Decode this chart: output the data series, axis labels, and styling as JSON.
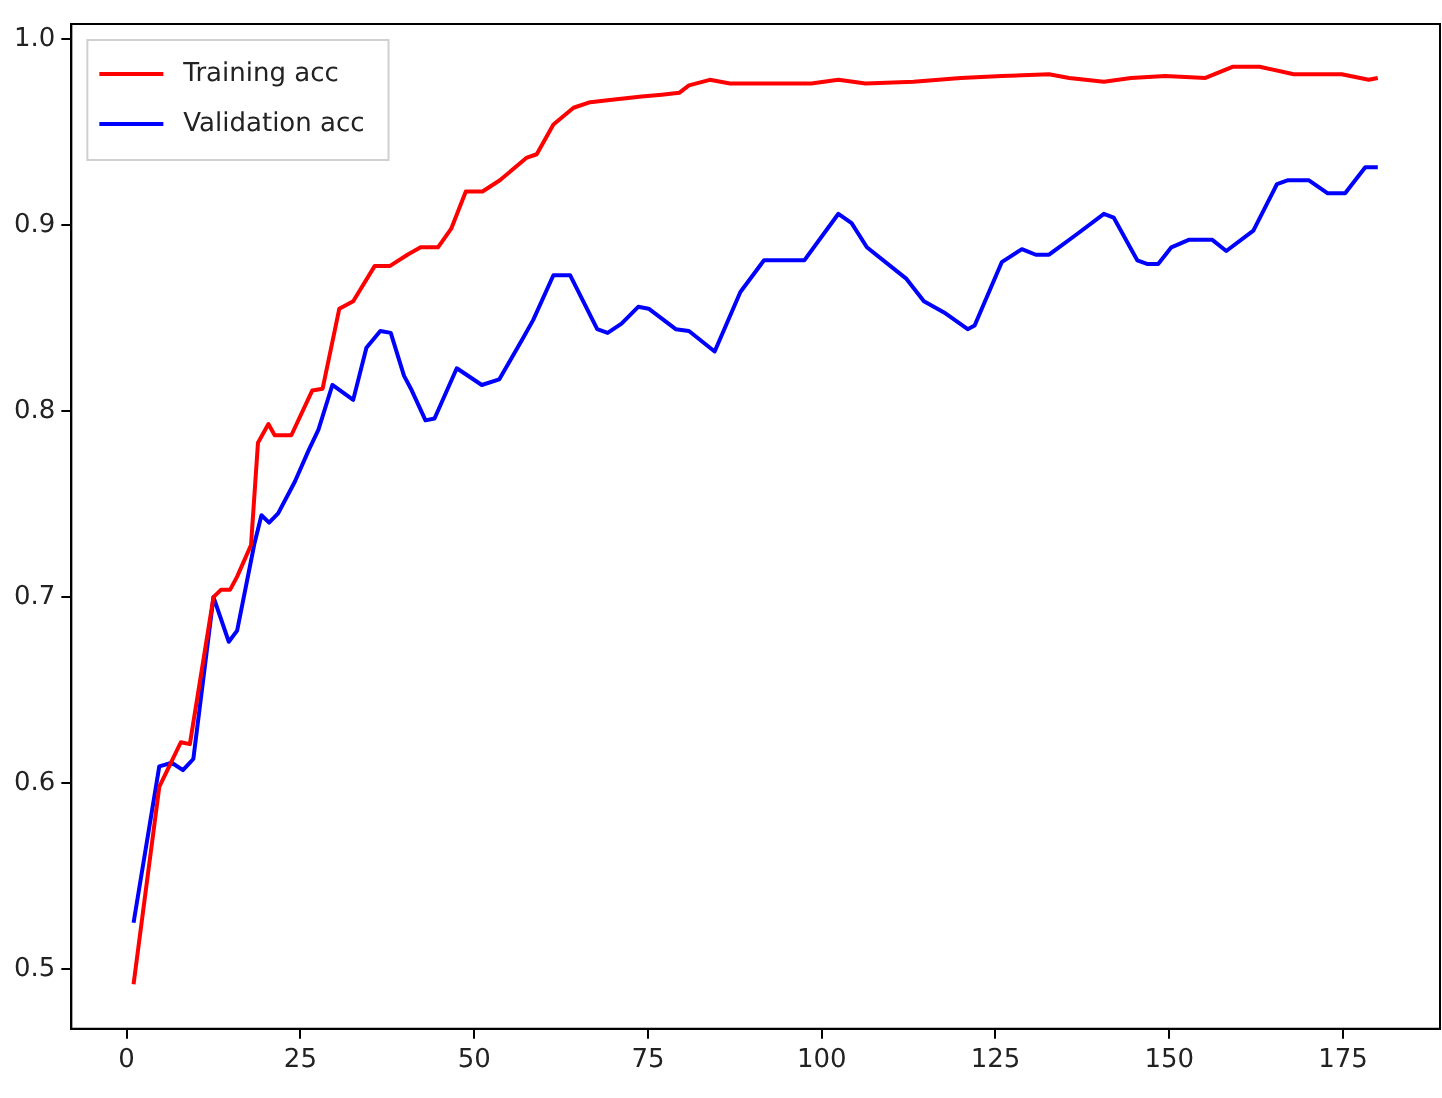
{
  "chart_data": {
    "type": "line",
    "legend": "top left",
    "grid": false,
    "marker": "none",
    "line_style": "solid",
    "xlim": [
      -7.95,
      188.95
    ],
    "xticks": [
      0,
      25,
      50,
      75,
      100,
      125,
      150,
      175
    ],
    "ylim": [
      0.468,
      1.008
    ],
    "yticks": [
      0.5,
      0.6,
      0.7,
      0.8,
      0.9,
      {
        "value": 1,
        "label": "1.0"
      }
    ],
    "series": [
      {
        "name": "Training acc",
        "color": "#ff0000",
        "x": [
          1,
          4.7,
          7.8,
          9.1,
          12.5,
          13.6,
          14.9,
          15.9,
          17.9,
          18.9,
          20.4,
          21.3,
          23.7,
          26.7,
          28.2,
          30.6,
          32.6,
          35.7,
          37.9,
          40.4,
          42.3,
          44.8,
          46.7,
          48.8,
          51.2,
          53.7,
          57.5,
          59,
          61.4,
          64.3,
          66.7,
          69.2,
          74.1,
          77,
          79.5,
          80.9,
          83.9,
          86.8,
          98.5,
          102.4,
          106.3,
          113.2,
          120,
          125.9,
          132.7,
          135.6,
          140.6,
          144.5,
          149.4,
          155.2,
          159.1,
          163,
          167.9,
          174.8,
          178.7,
          180
        ],
        "values": [
          0.492,
          0.598,
          0.622,
          0.621,
          0.7,
          0.704,
          0.704,
          0.711,
          0.728,
          0.783,
          0.793,
          0.787,
          0.787,
          0.811,
          0.812,
          0.855,
          0.859,
          0.878,
          0.878,
          0.884,
          0.888,
          0.888,
          0.898,
          0.918,
          0.918,
          0.924,
          0.936,
          0.938,
          0.954,
          0.963,
          0.966,
          0.967,
          0.969,
          0.97,
          0.971,
          0.975,
          0.978,
          0.976,
          0.976,
          0.978,
          0.976,
          0.977,
          0.979,
          0.98,
          0.981,
          0.979,
          0.977,
          0.979,
          0.98,
          0.979,
          0.985,
          0.985,
          0.981,
          0.981,
          0.978,
          0.979
        ]
      },
      {
        "name": "Validation acc",
        "color": "#0000ff",
        "x": [
          1,
          4.7,
          6.5,
          8.1,
          9.6,
          12.5,
          14.7,
          15.9,
          18.4,
          19.4,
          20.5,
          21.8,
          24.2,
          26.2,
          27.6,
          29.6,
          32.6,
          34.5,
          36.5,
          38,
          39.9,
          40.9,
          43,
          44.3,
          47.5,
          51.1,
          53.6,
          57,
          58.5,
          61.4,
          63.8,
          67.7,
          69.2,
          71.2,
          73.6,
          75.1,
          79,
          80.9,
          84.6,
          88.3,
          91.7,
          97.5,
          102.4,
          104.3,
          106.5,
          112.2,
          114.7,
          117.6,
          121,
          122,
          125.9,
          128.8,
          130.8,
          132.7,
          136.7,
          140.6,
          142,
          145.4,
          146.9,
          148.4,
          150.3,
          152.8,
          156.2,
          158.2,
          162.1,
          165.5,
          167,
          170.1,
          172.8,
          175.3,
          178.2,
          180
        ],
        "values": [
          0.525,
          0.609,
          0.611,
          0.607,
          0.613,
          0.7,
          0.676,
          0.682,
          0.729,
          0.744,
          0.74,
          0.745,
          0.762,
          0.779,
          0.79,
          0.814,
          0.806,
          0.834,
          0.843,
          0.842,
          0.819,
          0.812,
          0.795,
          0.796,
          0.823,
          0.814,
          0.817,
          0.839,
          0.849,
          0.873,
          0.873,
          0.844,
          0.842,
          0.847,
          0.856,
          0.855,
          0.844,
          0.843,
          0.832,
          0.864,
          0.881,
          0.881,
          0.906,
          0.901,
          0.888,
          0.871,
          0.859,
          0.853,
          0.844,
          0.846,
          0.88,
          0.887,
          0.884,
          0.884,
          0.895,
          0.906,
          0.904,
          0.881,
          0.879,
          0.879,
          0.888,
          0.892,
          0.892,
          0.886,
          0.897,
          0.922,
          0.924,
          0.924,
          0.917,
          0.917,
          0.931,
          0.931
        ]
      }
    ]
  }
}
